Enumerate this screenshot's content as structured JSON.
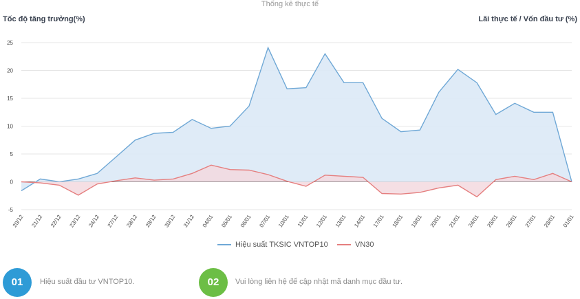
{
  "page": {
    "title": "Thống kê thực tế",
    "left_axis_title": "Tốc độ tăng trưởng(%)",
    "right_axis_title": "Lãi thực tế / Vốn đầu tư (%)"
  },
  "chart_data": {
    "type": "area",
    "title": "Thống kê thực tế",
    "ylabel": "Tốc độ tăng trưởng(%)",
    "ylabel_right": "Lãi thực tế / Vốn đầu tư (%)",
    "ylim": [
      -5,
      25
    ],
    "yticks": [
      -5,
      0,
      5,
      10,
      15,
      20,
      25
    ],
    "grid": true,
    "legend_position": "bottom",
    "categories": [
      "20/12",
      "21/12",
      "22/12",
      "23/12",
      "24/12",
      "27/12",
      "28/12",
      "29/12",
      "30/12",
      "31/12",
      "04/01",
      "05/01",
      "06/01",
      "07/01",
      "10/01",
      "11/01",
      "12/01",
      "13/01",
      "14/01",
      "17/01",
      "18/01",
      "19/01",
      "20/01",
      "21/01",
      "24/01",
      "25/01",
      "26/01",
      "27/01",
      "28/01",
      "01/01"
    ],
    "series": [
      {
        "name": "Hiệu suất TKSIC VNTOP10",
        "color": "#6fa8d6",
        "fill": "#dbe9f6",
        "values": [
          -1.6,
          0.5,
          0.0,
          0.5,
          1.5,
          4.5,
          7.5,
          8.7,
          8.9,
          11.2,
          9.6,
          10.0,
          13.6,
          24.1,
          16.7,
          16.9,
          23.0,
          17.8,
          17.8,
          11.4,
          9.0,
          9.3,
          16.1,
          20.2,
          17.8,
          12.1,
          14.1,
          12.5,
          12.5,
          0.0
        ]
      },
      {
        "name": "VN30",
        "color": "#e57f7f",
        "fill": "#f3d9df",
        "values": [
          0.0,
          -0.2,
          -0.6,
          -2.4,
          -0.4,
          0.2,
          0.7,
          0.3,
          0.5,
          1.5,
          3.0,
          2.2,
          2.1,
          1.3,
          0.1,
          -0.8,
          1.2,
          1.0,
          0.8,
          -2.1,
          -2.2,
          -1.9,
          -1.1,
          -0.6,
          -2.7,
          0.4,
          1.0,
          0.4,
          1.5,
          0.0
        ]
      }
    ]
  },
  "badges": [
    {
      "number": "01",
      "text": "Hiệu suất đầu tư VNTOP10.",
      "color": "#2e9bd6"
    },
    {
      "number": "02",
      "text": "Vui lòng liên hệ để cập nhật mã danh mục đầu tư.",
      "color": "#6cbe45"
    }
  ]
}
